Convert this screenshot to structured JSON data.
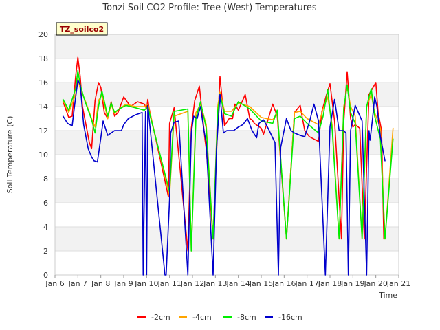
{
  "chart_data": {
    "type": "line",
    "title": "Tonzi Soil CO2 Profile: Tree (West) Temperatures",
    "xlabel": "Time",
    "ylabel": "Soil Temperature (C)",
    "site_badge": "TZ_soilco2",
    "xlim": [
      6,
      21
    ],
    "ylim": [
      0,
      20
    ],
    "x_ticks": [
      6,
      7,
      8,
      9,
      10,
      11,
      12,
      13,
      14,
      15,
      16,
      17,
      18,
      19,
      20,
      21
    ],
    "x_tick_labels": [
      "Jan 6",
      "Jan 7",
      "Jan 8",
      "Jan 9",
      "Jan 10",
      "Jan 11",
      "Jan 12",
      "Jan 13",
      "Jan 14",
      "Jan 15",
      "Jan 16",
      "Jan 17",
      "Jan 18",
      "Jan 19",
      "Jan 20",
      "Jan 21"
    ],
    "y_ticks": [
      0,
      2,
      4,
      6,
      8,
      10,
      12,
      14,
      16,
      18,
      20
    ],
    "y_tick_labels": [
      "0",
      "2",
      "4",
      "6",
      "8",
      "10",
      "12",
      "14",
      "16",
      "18",
      "20"
    ],
    "legend_position": "bottom-center",
    "series": [
      {
        "name": "-2cm",
        "color": "#ff0000",
        "x": [
          6.35,
          6.6,
          6.75,
          6.9,
          7.0,
          7.1,
          7.2,
          7.35,
          7.5,
          7.6,
          7.75,
          7.9,
          8.0,
          8.15,
          8.3,
          8.45,
          8.6,
          8.75,
          9.0,
          9.3,
          9.6,
          9.9,
          10.0,
          10.05,
          10.1,
          10.95,
          11.0,
          11.2,
          11.4,
          11.8,
          11.95,
          12.1,
          12.3,
          12.55,
          12.6,
          12.9,
          13.1,
          13.2,
          13.4,
          13.6,
          13.75,
          13.85,
          14.0,
          14.3,
          14.5,
          14.6,
          14.7,
          15.0,
          15.1,
          15.25,
          15.5,
          15.7,
          16.1,
          16.45,
          16.7,
          16.8,
          16.9,
          17.1,
          17.5,
          17.65,
          17.85,
          18.0,
          18.2,
          18.5,
          18.6,
          18.75,
          18.9,
          19.0,
          19.1,
          19.3,
          19.5,
          19.7,
          19.85,
          20.0,
          20.1,
          20.25,
          20.35
        ],
        "y": [
          14.4,
          13.1,
          13.2,
          16.5,
          18.1,
          16.5,
          14.0,
          12.5,
          11.0,
          10.5,
          14.5,
          16.0,
          15.6,
          13.5,
          13.0,
          14.4,
          13.2,
          13.5,
          14.8,
          14.0,
          14.4,
          14.2,
          13.8,
          14.6,
          13.9,
          6.5,
          12.6,
          13.9,
          10.0,
          2.0,
          12.2,
          14.5,
          15.7,
          11.2,
          10.5,
          3.0,
          12.5,
          16.5,
          12.4,
          13.0,
          13.0,
          14.2,
          13.7,
          15.0,
          13.0,
          12.9,
          12.6,
          12.2,
          11.7,
          12.6,
          14.2,
          13.2,
          3.0,
          13.5,
          14.1,
          13.0,
          12.0,
          11.5,
          11.1,
          13.6,
          15.0,
          15.9,
          12.8,
          3.0,
          12.7,
          16.9,
          13.0,
          12.3,
          12.5,
          12.2,
          3.0,
          15.0,
          15.5,
          16.0,
          13.5,
          12.0,
          3.0
        ]
      },
      {
        "name": "-4cm",
        "color": "#ffa500",
        "x": [
          6.35,
          6.6,
          6.9,
          7.0,
          7.1,
          7.3,
          7.6,
          7.75,
          7.9,
          8.05,
          8.3,
          8.45,
          8.6,
          8.8,
          9.1,
          9.5,
          9.9,
          10.05,
          11.0,
          11.2,
          11.8,
          11.95,
          12.15,
          12.35,
          12.6,
          12.9,
          13.1,
          13.2,
          13.4,
          13.7,
          14.0,
          14.5,
          15.0,
          15.5,
          15.7,
          16.1,
          16.45,
          16.7,
          17.0,
          17.5,
          17.7,
          17.9,
          18.1,
          18.4,
          18.6,
          18.75,
          18.9,
          19.1,
          19.4,
          19.6,
          19.8,
          19.95,
          20.2,
          20.4,
          20.75
        ],
        "y": [
          14.5,
          13.5,
          15.0,
          16.3,
          15.5,
          14.6,
          13.0,
          12.3,
          14.5,
          15.0,
          13.0,
          14.2,
          13.4,
          13.8,
          14.2,
          14.0,
          14.0,
          14.2,
          6.6,
          13.2,
          13.6,
          2.0,
          13.5,
          14.2,
          12.5,
          3.0,
          14.0,
          15.2,
          13.6,
          13.6,
          14.3,
          14.0,
          13.1,
          12.9,
          13.5,
          3.0,
          13.5,
          13.6,
          13.0,
          12.5,
          13.8,
          14.8,
          12.4,
          3.0,
          14.0,
          15.6,
          14.0,
          13.2,
          3.0,
          14.0,
          15.0,
          13.5,
          12.2,
          3.0,
          12.2
        ]
      },
      {
        "name": "-8cm",
        "color": "#00ee00",
        "x": [
          6.35,
          6.6,
          6.9,
          7.0,
          7.1,
          7.3,
          7.6,
          7.75,
          7.9,
          8.05,
          8.3,
          8.45,
          8.6,
          8.8,
          9.1,
          9.5,
          9.9,
          10.05,
          11.0,
          11.2,
          11.8,
          11.95,
          12.15,
          12.35,
          12.6,
          12.9,
          13.1,
          13.2,
          13.4,
          13.7,
          14.0,
          14.5,
          15.0,
          15.5,
          15.7,
          16.1,
          16.45,
          16.7,
          17.0,
          17.5,
          17.7,
          17.9,
          18.1,
          18.4,
          18.6,
          18.75,
          18.9,
          19.1,
          19.4,
          19.6,
          19.8,
          19.95,
          20.2,
          20.4,
          20.75
        ],
        "y": [
          14.6,
          13.7,
          15.5,
          17.0,
          15.8,
          14.5,
          12.9,
          11.8,
          14.0,
          15.3,
          13.2,
          14.3,
          13.5,
          13.8,
          14.1,
          13.9,
          13.7,
          14.0,
          6.9,
          13.6,
          13.8,
          2.0,
          13.0,
          14.4,
          12.2,
          3.0,
          13.6,
          15.0,
          13.4,
          13.2,
          14.4,
          13.8,
          12.8,
          12.6,
          13.7,
          3.0,
          13.0,
          13.2,
          12.6,
          11.8,
          13.2,
          15.4,
          12.0,
          3.0,
          13.8,
          15.8,
          13.5,
          12.6,
          3.0,
          14.0,
          15.5,
          13.2,
          11.3,
          3.0,
          11.3
        ]
      },
      {
        "name": "-16cm",
        "color": "#0000cc",
        "x": [
          6.35,
          6.55,
          6.75,
          6.85,
          7.0,
          7.1,
          7.25,
          7.45,
          7.6,
          7.7,
          7.85,
          8.0,
          8.1,
          8.3,
          8.6,
          8.9,
          9.0,
          9.2,
          9.5,
          9.8,
          9.85,
          9.95,
          10.0,
          10.05,
          10.8,
          10.85,
          11.0,
          11.05,
          11.2,
          11.4,
          11.8,
          11.95,
          12.05,
          12.2,
          12.35,
          12.5,
          12.6,
          12.9,
          13.05,
          13.2,
          13.35,
          13.5,
          13.8,
          14.0,
          14.2,
          14.4,
          14.6,
          14.8,
          14.9,
          15.1,
          15.3,
          15.6,
          15.75,
          15.85,
          16.1,
          16.3,
          16.45,
          16.7,
          16.9,
          17.1,
          17.3,
          17.5,
          17.8,
          18.0,
          18.2,
          18.4,
          18.6,
          18.7,
          18.8,
          18.9,
          19.1,
          19.4,
          19.6,
          19.7,
          19.75,
          19.85,
          19.95,
          20.05,
          20.2,
          20.35,
          20.4
        ],
        "y": [
          13.2,
          12.6,
          12.4,
          14.0,
          16.2,
          15.8,
          12.5,
          10.5,
          9.8,
          9.5,
          9.4,
          11.4,
          12.8,
          11.6,
          12.0,
          12.0,
          12.5,
          13.0,
          13.3,
          13.5,
          0.0,
          13.6,
          0.0,
          14.1,
          0.0,
          0.0,
          6.3,
          11.8,
          12.7,
          12.8,
          0.0,
          11.8,
          13.2,
          13.0,
          14.0,
          12.0,
          11.0,
          0.0,
          10.5,
          15.0,
          11.8,
          12.0,
          12.0,
          12.3,
          12.5,
          13.0,
          12.0,
          11.4,
          12.6,
          12.9,
          12.2,
          11.0,
          0.0,
          10.6,
          13.0,
          12.0,
          11.8,
          11.6,
          11.5,
          12.7,
          14.2,
          12.8,
          0.0,
          12.3,
          14.6,
          12.0,
          12.0,
          11.8,
          0.0,
          12.0,
          14.1,
          12.8,
          0.0,
          12.0,
          11.2,
          12.9,
          14.8,
          14.0,
          11.5,
          10.0,
          9.5
        ]
      }
    ]
  }
}
